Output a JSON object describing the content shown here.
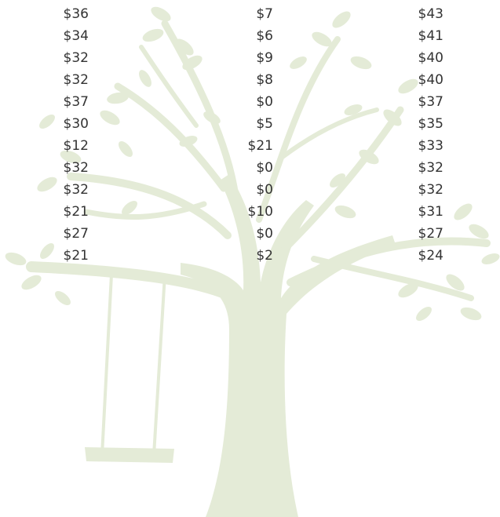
{
  "table": {
    "rows": [
      [
        "$36",
        "$7",
        "$43"
      ],
      [
        "$34",
        "$6",
        "$41"
      ],
      [
        "$32",
        "$9",
        "$40"
      ],
      [
        "$32",
        "$8",
        "$40"
      ],
      [
        "$37",
        "$0",
        "$37"
      ],
      [
        "$30",
        "$5",
        "$35"
      ],
      [
        "$12",
        "$21",
        "$33"
      ],
      [
        "$32",
        "$0",
        "$32"
      ],
      [
        "$32",
        "$0",
        "$32"
      ],
      [
        "$21",
        "$10",
        "$31"
      ],
      [
        "$27",
        "$0",
        "$27"
      ],
      [
        "$21",
        "$2",
        "$24"
      ]
    ]
  }
}
